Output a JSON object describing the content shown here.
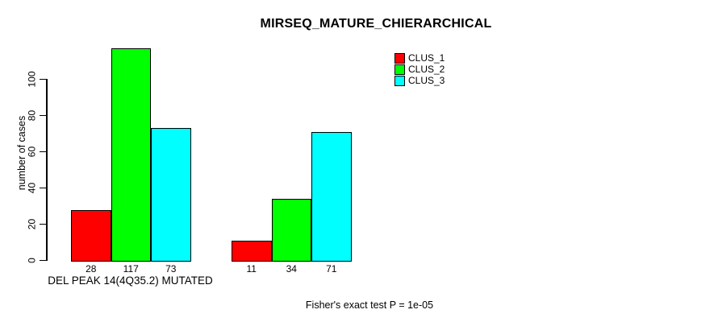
{
  "chart_data": {
    "type": "bar",
    "title": "MIRSEQ_MATURE_CHIERARCHICAL",
    "ylabel": "number of cases",
    "xlabel": "DEL PEAK 14(4Q35.2) MUTATED",
    "footnote": "Fisher's exact test P = 1e-05",
    "categories": [
      "",
      ""
    ],
    "series": [
      {
        "name": "CLUS_1",
        "color": "#ff0000",
        "values": [
          28,
          11
        ]
      },
      {
        "name": "CLUS_2",
        "color": "#00ff00",
        "values": [
          117,
          34
        ]
      },
      {
        "name": "CLUS_3",
        "color": "#00ffff",
        "values": [
          73,
          71
        ]
      }
    ],
    "yticks": [
      0,
      20,
      40,
      60,
      80,
      100
    ],
    "ylim": [
      0,
      120
    ],
    "grid": false,
    "bar_value_labels_visible": true,
    "legend_position": "top-right",
    "xlabel_position": "below-first-group",
    "background_color": "#ffffff",
    "axis_color": "#000000"
  }
}
